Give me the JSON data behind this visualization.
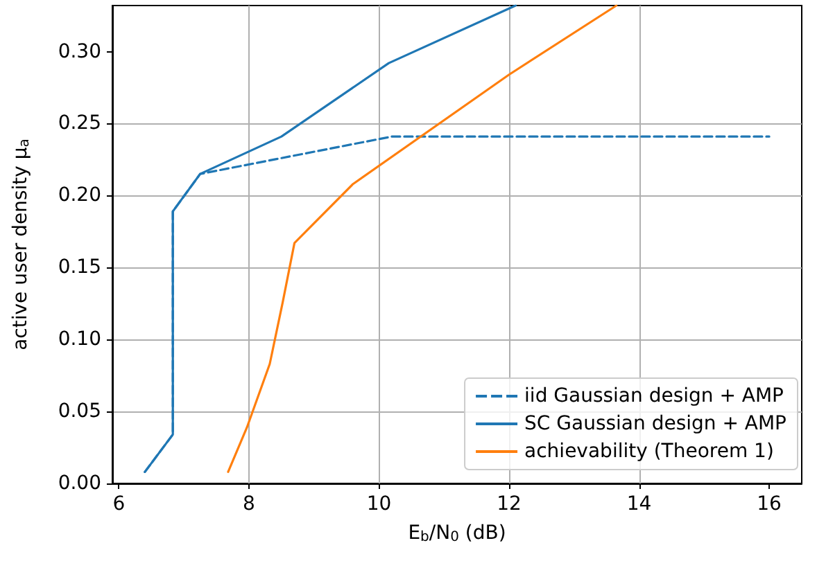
{
  "chart_data": {
    "type": "line",
    "xlabel": "E$_{b}$/N$_{0}$ (dB)",
    "ylabel": "active user density μ$_{a}$",
    "xlim": [
      5.9,
      16.5
    ],
    "xticks": [
      6,
      8,
      10,
      12,
      14,
      16
    ],
    "ylim": [
      0,
      0.332
    ],
    "yticks": [
      {
        "value": 0,
        "label": "0.00"
      },
      0.05,
      {
        "value": 0.1,
        "label": "0.10"
      },
      0.15,
      {
        "value": 0.2,
        "label": "0.20"
      },
      0.25,
      {
        "value": 0.3,
        "label": "0.30"
      }
    ],
    "grid": true,
    "legend": "bottom right",
    "marker": "none",
    "series": [
      {
        "name": "iid Gaussian design + AMP",
        "color": "#1f77b4",
        "line_style": "dashed",
        "x": [
          6.4,
          6.83,
          6.83,
          7.25,
          10.2,
          16
        ],
        "values": [
          0.008,
          0.034,
          0.189,
          0.215,
          0.241,
          0.241
        ]
      },
      {
        "name": "SC Gaussian design + AMP",
        "color": "#1f77b4",
        "line_style": "solid",
        "x": [
          6.4,
          6.83,
          6.83,
          7.25,
          8.5,
          10.15,
          12.1
        ],
        "values": [
          0.008,
          0.034,
          0.189,
          0.215,
          0.241,
          0.292,
          0.332
        ]
      },
      {
        "name": "achievability (Theorem 1)",
        "color": "#ff7f0e",
        "line_style": "solid",
        "x": [
          7.68,
          7.97,
          8.32,
          8.52,
          8.7,
          9.6,
          12.0,
          13.65
        ],
        "values": [
          0.008,
          0.039,
          0.083,
          0.126,
          0.167,
          0.208,
          0.284,
          0.332
        ]
      }
    ]
  }
}
